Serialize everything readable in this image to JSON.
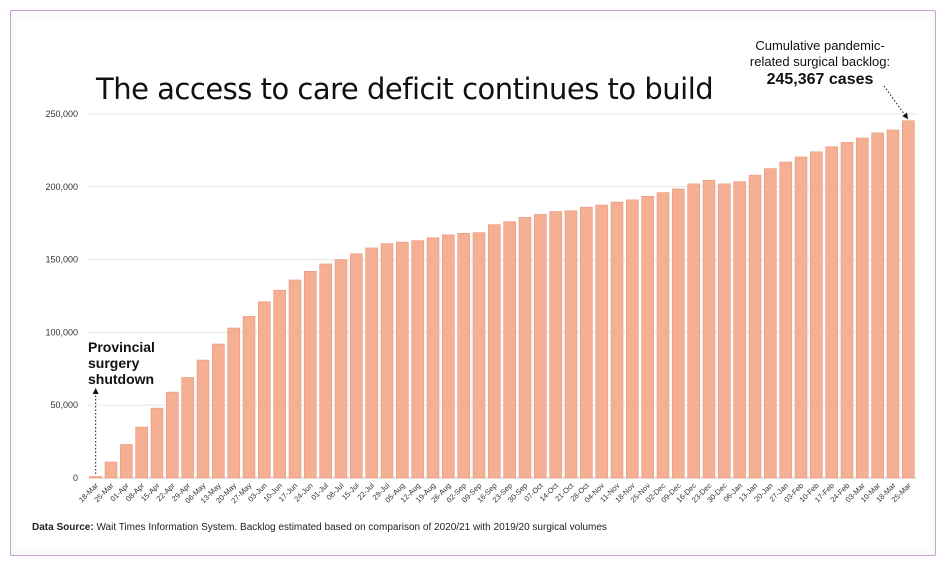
{
  "chart_data": {
    "type": "bar",
    "title": "The access to care deficit continues to build",
    "xlabel": "",
    "ylabel": "",
    "ylim": [
      0,
      250000
    ],
    "yticks": [
      "0",
      "50,000",
      "100,000",
      "150,000",
      "200,000",
      "250,000"
    ],
    "ytick_values": [
      0,
      50000,
      100000,
      150000,
      200000,
      250000
    ],
    "bar_color": "#f5b093",
    "bar_edge_color": "#e8977a",
    "grid": true,
    "categories": [
      "18-Mar",
      "25-Mar",
      "01-Apr",
      "08-Apr",
      "15-Apr",
      "22-Apr",
      "29-Apr",
      "06-May",
      "13-May",
      "20-May",
      "27-May",
      "03-Jun",
      "10-Jun",
      "17-Jun",
      "24-Jun",
      "01-Jul",
      "08-Jul",
      "15-Jul",
      "22-Jul",
      "29-Jul",
      "05-Aug",
      "12-Aug",
      "19-Aug",
      "26-Aug",
      "02-Sep",
      "09-Sep",
      "16-Sep",
      "23-Sep",
      "30-Sep",
      "07-Oct",
      "14-Oct",
      "21-Oct",
      "28-Oct",
      "04-Nov",
      "11-Nov",
      "18-Nov",
      "25-Nov",
      "02-Dec",
      "09-Dec",
      "16-Dec",
      "23-Dec",
      "30-Dec",
      "06-Jan",
      "13-Jan",
      "20-Jan",
      "27-Jan",
      "03-Feb",
      "10-Feb",
      "17-Feb",
      "24-Feb",
      "03-Mar",
      "10-Mar",
      "18-Mar",
      "25-Mar"
    ],
    "values": [
      1000,
      11000,
      23000,
      35000,
      48000,
      59000,
      69000,
      81000,
      92000,
      103000,
      111000,
      121000,
      129000,
      136000,
      142000,
      147000,
      150000,
      154000,
      158000,
      161000,
      162000,
      163000,
      165000,
      167000,
      168000,
      168500,
      174000,
      176000,
      179000,
      181000,
      183000,
      183500,
      186000,
      187500,
      189500,
      191000,
      193500,
      196000,
      198500,
      202000,
      204500,
      202000,
      203500,
      208000,
      212500,
      217000,
      220500,
      224000,
      227500,
      230500,
      233500,
      237000,
      239000,
      245367
    ],
    "annotations": {
      "callout_line1": "Cumulative pandemic-",
      "callout_line2": "related surgical backlog:",
      "callout_value": "245,367 cases",
      "shutdown_line1": "Provincial",
      "shutdown_line2": "surgery",
      "shutdown_line3": "shutdown"
    },
    "source_label": "Data Source:",
    "source_text": " Wait Times Information System. Backlog estimated based on comparison of 2020/21 with 2019/20 surgical volumes"
  }
}
